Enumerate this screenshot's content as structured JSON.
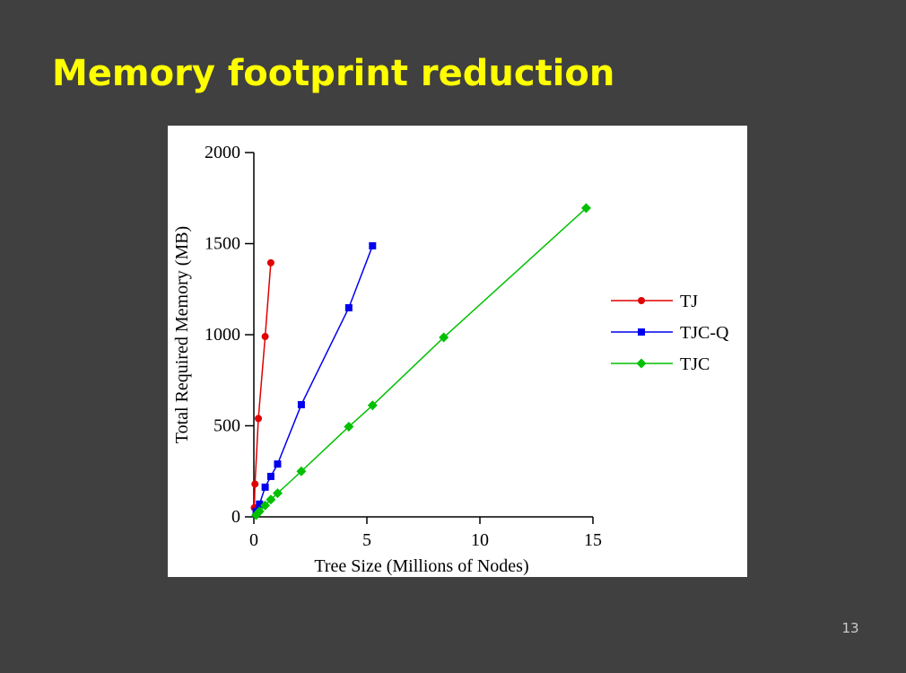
{
  "slide": {
    "title": "Memory footprint reduction",
    "page_number": "13"
  },
  "chart_data": {
    "type": "line",
    "x_label": "Tree Size (Millions of Nodes)",
    "y_label": "Total Required Memory (MB)",
    "xlim": [
      0,
      15
    ],
    "xticks": [
      0,
      5,
      10,
      15
    ],
    "ylim": [
      0,
      2000
    ],
    "yticks": [
      0,
      500,
      1000,
      1500,
      2000
    ],
    "legend": "right",
    "series": [
      {
        "name": "TJ",
        "color": "#e00000",
        "marker": "circle",
        "x": [
          0.02,
          0.05,
          0.2,
          0.5,
          0.75
        ],
        "values": [
          50,
          180,
          540,
          990,
          1395
        ]
      },
      {
        "name": "TJC-Q",
        "color": "#0000ee",
        "marker": "square",
        "x": [
          0.1,
          0.25,
          0.5,
          0.75,
          1.05,
          2.1,
          4.2,
          5.25
        ],
        "values": [
          30,
          70,
          163,
          222,
          290,
          616,
          1148,
          1488
        ]
      },
      {
        "name": "TJC",
        "color": "#00c000",
        "marker": "diamond",
        "x": [
          0.1,
          0.25,
          0.5,
          0.75,
          1.05,
          2.1,
          4.2,
          5.25,
          8.4,
          14.7
        ],
        "values": [
          10,
          30,
          63,
          95,
          130,
          250,
          495,
          612,
          985,
          1695
        ]
      }
    ]
  }
}
